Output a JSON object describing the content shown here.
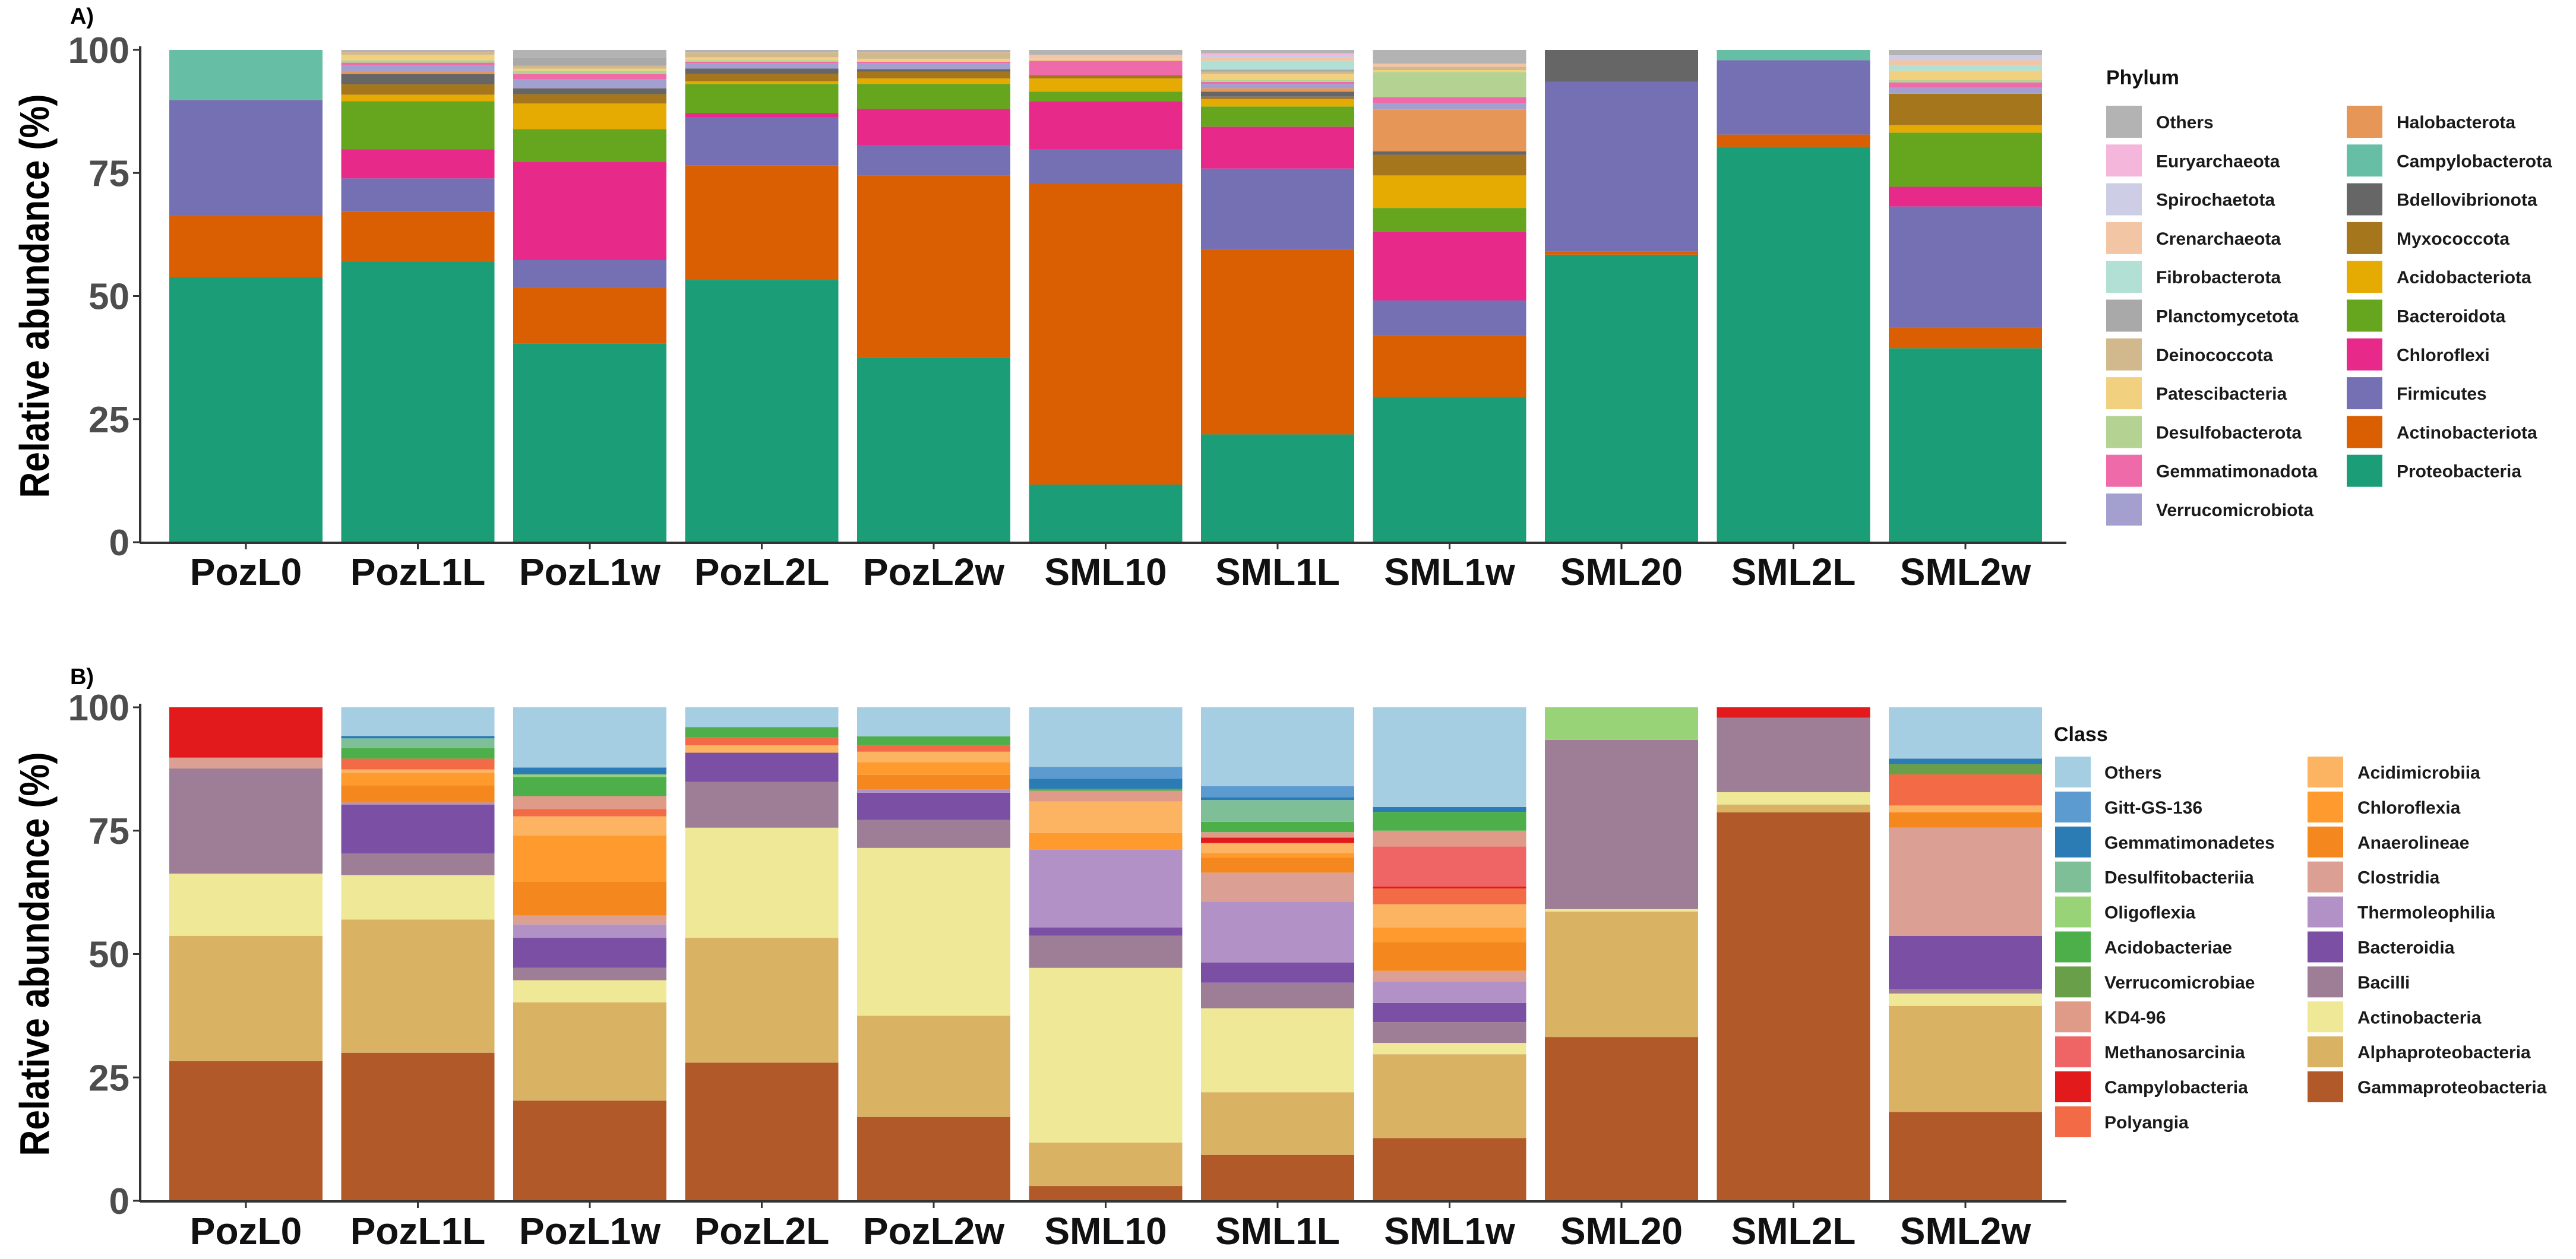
{
  "chart_data": [
    {
      "type": "bar",
      "stacked": true,
      "panel_label": "A)",
      "ylabel": "Relative abundance (%)",
      "xlabel": "",
      "ylim": [
        0,
        100
      ],
      "yticks": [
        0,
        25,
        50,
        75,
        100
      ],
      "grid": false,
      "legend_title": "Phylum",
      "legend_position": "right",
      "categories": [
        "PozL0",
        "PozL1L",
        "PozL1w",
        "PozL2L",
        "PozL2w",
        "SML10",
        "SML1L",
        "SML1w",
        "SML20",
        "SML2L",
        "SML2w"
      ],
      "series": [
        {
          "name": "Others",
          "color": "#b3b3b3",
          "values": [
            0,
            0.4,
            1.6,
            0.5,
            0.5,
            1.0,
            0.7,
            2.8,
            0,
            0,
            1.1
          ]
        },
        {
          "name": "Euryarchaeota",
          "color": "#f4b6da",
          "values": [
            0,
            0,
            0,
            0,
            0,
            0,
            0.5,
            0,
            0,
            0,
            0
          ]
        },
        {
          "name": "Spirochaetota",
          "color": "#cdcde6",
          "values": [
            0,
            0,
            0,
            0,
            0,
            0,
            0.4,
            0,
            0,
            0,
            1.0
          ]
        },
        {
          "name": "Crenarchaeota",
          "color": "#f2c6a5",
          "values": [
            0,
            0,
            0,
            0,
            0,
            0.8,
            0.6,
            0.6,
            0,
            0,
            1.0
          ]
        },
        {
          "name": "Fibrobacterota",
          "color": "#b3e0d4",
          "values": [
            0,
            0,
            0,
            0,
            0,
            0,
            1.8,
            0,
            0,
            0,
            1.1
          ]
        },
        {
          "name": "Planctomycetota",
          "color": "#a9a9a9",
          "values": [
            0,
            0,
            1.6,
            0,
            0,
            0,
            0.4,
            0,
            0,
            0,
            0
          ]
        },
        {
          "name": "Deinococcota",
          "color": "#d2b98d",
          "values": [
            0,
            0.6,
            0.6,
            1.0,
            1.3,
            0,
            0.5,
            0.7,
            0,
            0,
            0
          ]
        },
        {
          "name": "Patescibacteria",
          "color": "#f1d180",
          "values": [
            0,
            1.1,
            0.4,
            0.6,
            0.6,
            0.4,
            1.2,
            0.4,
            0,
            0,
            1.9
          ]
        },
        {
          "name": "Desulfobacterota",
          "color": "#b4d392",
          "values": [
            0,
            0.5,
            0.7,
            0.3,
            0,
            0,
            0.4,
            5.1,
            0,
            0,
            0.5
          ]
        },
        {
          "name": "Gemmatimonadota",
          "color": "#ef6aa8",
          "values": [
            0,
            0.5,
            1.1,
            0.3,
            0.3,
            2.9,
            0.4,
            1.3,
            0,
            0,
            1.1
          ]
        },
        {
          "name": "Verrucomicrobiota",
          "color": "#a3a0cf",
          "values": [
            0,
            1.3,
            1.8,
            1.1,
            1.2,
            0,
            0.9,
            1.2,
            0,
            0,
            1.2
          ]
        },
        {
          "name": "Halobacterota",
          "color": "#e69656",
          "values": [
            0,
            0.5,
            0,
            0,
            0,
            0,
            0.7,
            8.5,
            0,
            0,
            0
          ]
        },
        {
          "name": "Campylobacterota",
          "color": "#66bfa4",
          "values": [
            10.2,
            0,
            0,
            0,
            0,
            0,
            0,
            0,
            0,
            2.1,
            0
          ]
        },
        {
          "name": "Bdellovibrionota",
          "color": "#666666",
          "values": [
            0,
            2.1,
            1.2,
            1.1,
            0.5,
            0,
            1.0,
            0.7,
            6.5,
            0,
            0
          ]
        },
        {
          "name": "Myxococcota",
          "color": "#a6761d",
          "values": [
            0,
            2.1,
            1.9,
            1.5,
            1.4,
            0.7,
            0.5,
            4.2,
            0,
            0,
            6.4
          ]
        },
        {
          "name": "Acidobacteriota",
          "color": "#e6ab02",
          "values": [
            0,
            1.3,
            5.2,
            0.5,
            1.1,
            2.7,
            1.5,
            6.6,
            0,
            0,
            1.5
          ]
        },
        {
          "name": "Bacteroidota",
          "color": "#66a61e",
          "values": [
            0,
            9.8,
            6.6,
            5.9,
            5.1,
            1.9,
            4.1,
            4.8,
            0,
            0,
            11
          ]
        },
        {
          "name": "Chloroflexi",
          "color": "#e7298a",
          "values": [
            0,
            5.9,
            20,
            0.9,
            7.5,
            9.8,
            8.5,
            14,
            0,
            0,
            4
          ]
        },
        {
          "name": "Firmicutes",
          "color": "#7570b3",
          "values": [
            23.4,
            6.8,
            5.5,
            9.8,
            6,
            7,
            16.4,
            7.2,
            34.5,
            15.1,
            24.6
          ]
        },
        {
          "name": "Actinobacteriota",
          "color": "#d95f02",
          "values": [
            12.6,
            10.1,
            11.5,
            23.2,
            37,
            61.1,
            37.6,
            12.4,
            0.6,
            2.5,
            4.2
          ]
        },
        {
          "name": "Proteobacteria",
          "color": "#1b9e77",
          "values": [
            53.8,
            57,
            40.3,
            53.3,
            37.5,
            11.7,
            21.9,
            29.5,
            58.4,
            80.3,
            39.4
          ]
        }
      ]
    },
    {
      "type": "bar",
      "stacked": true,
      "panel_label": "B)",
      "ylabel": "Relative abundance (%)",
      "xlabel": "",
      "ylim": [
        0,
        100
      ],
      "yticks": [
        0,
        25,
        50,
        75,
        100
      ],
      "grid": false,
      "legend_title": "Class",
      "legend_position": "right",
      "categories": [
        "PozL0",
        "PozL1L",
        "PozL1w",
        "PozL2L",
        "PozL2w",
        "SML10",
        "SML1L",
        "SML1w",
        "SML20",
        "SML2L",
        "SML2w"
      ],
      "series": [
        {
          "name": "Others",
          "color": "#a6cee3",
          "values": [
            0,
            5.8,
            12.2,
            4.0,
            5.9,
            12.1,
            16,
            20.2,
            0,
            0,
            10.4
          ]
        },
        {
          "name": "Gitt-GS-136",
          "color": "#5b9bd0",
          "values": [
            0,
            0,
            0,
            0,
            0,
            2.4,
            2.2,
            0,
            0,
            0,
            0
          ]
        },
        {
          "name": "Gemmatimonadetes",
          "color": "#2b7bb5",
          "values": [
            0,
            0.5,
            1.4,
            0,
            0,
            2.0,
            0.6,
            1.0,
            0,
            0,
            1.1
          ]
        },
        {
          "name": "Desulfitobacteriia",
          "color": "#7fbf98",
          "values": [
            0,
            2.0,
            0,
            0,
            0,
            0,
            4.4,
            0,
            0,
            0,
            0
          ]
        },
        {
          "name": "Oligoflexia",
          "color": "#98d477",
          "values": [
            0,
            0,
            0.5,
            0,
            0,
            0,
            0,
            0,
            6.6,
            0,
            0
          ]
        },
        {
          "name": "Acidobacteriae",
          "color": "#4daf4a",
          "values": [
            0,
            2.1,
            3.9,
            2.1,
            1.7,
            0.4,
            2.1,
            3.8,
            0,
            0,
            0
          ]
        },
        {
          "name": "Verrucomicrobiae",
          "color": "#6a9f4a",
          "values": [
            0,
            0,
            0,
            0,
            0,
            0,
            0,
            0,
            0,
            0,
            2.1
          ]
        },
        {
          "name": "KD4-96",
          "color": "#e09a88",
          "values": [
            0,
            0,
            2.6,
            0,
            0,
            2.2,
            1.1,
            3.2,
            0,
            0,
            0
          ]
        },
        {
          "name": "Methanosarcinia",
          "color": "#ef6465",
          "values": [
            0,
            0,
            0,
            0,
            0,
            0,
            0,
            8.1,
            0,
            0,
            0
          ]
        },
        {
          "name": "Campylobacteria",
          "color": "#e31a1c",
          "values": [
            10.2,
            0,
            0,
            0,
            0,
            0,
            1.1,
            0.4,
            0,
            2.1,
            0
          ]
        },
        {
          "name": "Polyangia",
          "color": "#f26b46",
          "values": [
            0,
            2.2,
            1.5,
            1.6,
            1.4,
            0,
            0,
            3.2,
            0,
            0,
            6.3
          ]
        },
        {
          "name": "Acidimicrobiia",
          "color": "#fdb462",
          "values": [
            0,
            0.7,
            3.9,
            1.5,
            2.1,
            6.4,
            2.0,
            4.7,
            0,
            0,
            1.4
          ]
        },
        {
          "name": "Chloroflexia",
          "color": "#fe9a2e",
          "values": [
            0,
            2.5,
            9.3,
            0,
            2.6,
            3.3,
            1.0,
            3.0,
            0,
            0,
            0
          ]
        },
        {
          "name": "Anaerolineae",
          "color": "#f5871f",
          "values": [
            0,
            3.5,
            6.9,
            0,
            3.0,
            0,
            3.0,
            5.8,
            0,
            0,
            3.1
          ]
        },
        {
          "name": "Clostridia",
          "color": "#dba093",
          "values": [
            2.2,
            0,
            1.8,
            0,
            0,
            0,
            5.9,
            2.2,
            0,
            0,
            21.9
          ]
        },
        {
          "name": "Thermoleophilia",
          "color": "#b292c6",
          "values": [
            0,
            0.4,
            2.7,
            0,
            0.6,
            15.8,
            12.3,
            4.3,
            0,
            0,
            0
          ]
        },
        {
          "name": "Bacteroidia",
          "color": "#7b50a4",
          "values": [
            0,
            9.9,
            6.1,
            5.9,
            5.5,
            1.7,
            4.1,
            3.9,
            0,
            0,
            10.8
          ]
        },
        {
          "name": "Bacilli",
          "color": "#9e7e96",
          "values": [
            21.3,
            4.4,
            2.5,
            9.3,
            5.7,
            6.5,
            5.2,
            4.2,
            34.3,
            15.1,
            0.9
          ]
        },
        {
          "name": "Actinobacteria",
          "color": "#eee897",
          "values": [
            12.6,
            9,
            4.5,
            22.3,
            34,
            35.4,
            17,
            2.3,
            0.5,
            2.5,
            2.5
          ]
        },
        {
          "name": "Alphaproteobacteria",
          "color": "#d9b264",
          "values": [
            25.4,
            27,
            19.9,
            25.3,
            20.5,
            8.8,
            12.7,
            17,
            25.4,
            1.6,
            21.5
          ]
        },
        {
          "name": "Gammaproteobacteria",
          "color": "#b15928",
          "values": [
            28.3,
            30,
            20.3,
            28,
            17,
            3,
            9.3,
            12.7,
            33.2,
            78.7,
            18
          ]
        }
      ]
    }
  ]
}
